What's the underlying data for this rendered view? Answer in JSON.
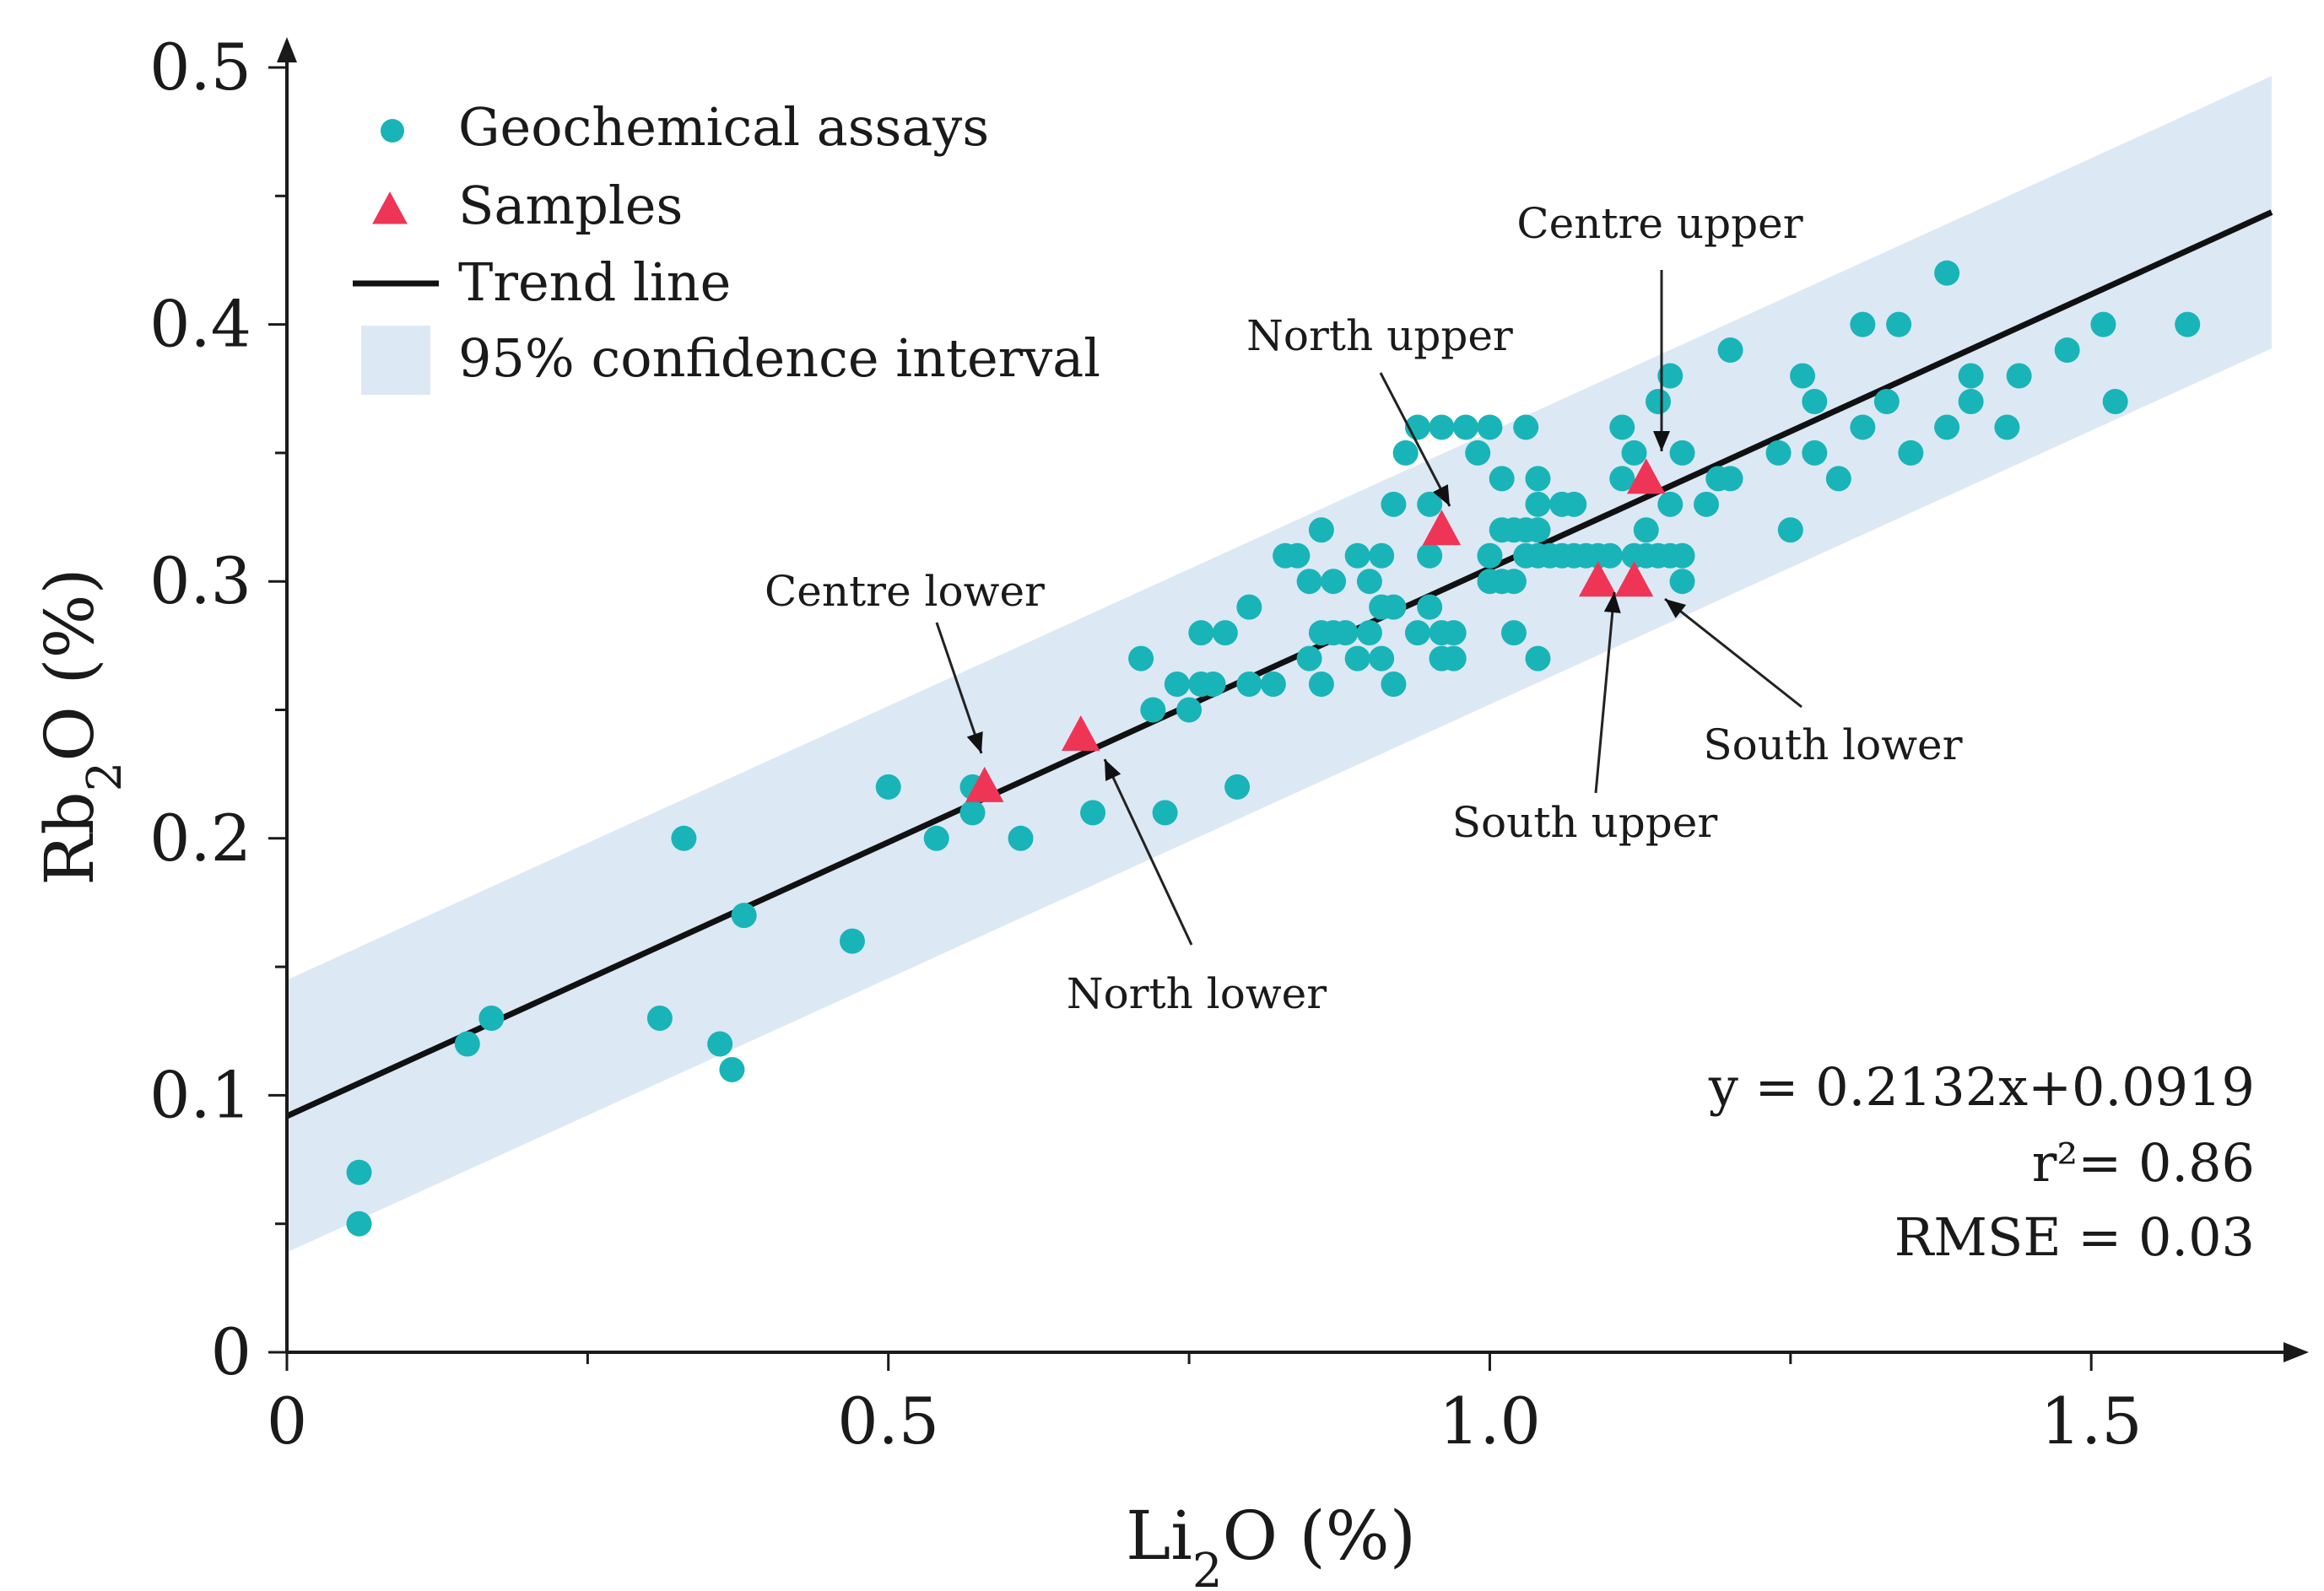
{
  "chart_data": {
    "type": "scatter",
    "title": "",
    "xlabel": {
      "base": "Li",
      "sub": "2",
      "rest": "O (%)"
    },
    "ylabel": {
      "base": "Rb",
      "sub": "2",
      "rest": "O (%)"
    },
    "xlim": [
      0,
      1.65
    ],
    "ylim": [
      0,
      0.5
    ],
    "x_ticks": [
      {
        "value": 0,
        "label": "0"
      },
      {
        "value": 0.5,
        "label": "0.5"
      },
      {
        "value": 1.0,
        "label": "1.0"
      },
      {
        "value": 1.5,
        "label": "1.5"
      }
    ],
    "y_ticks": [
      {
        "value": 0,
        "label": "0"
      },
      {
        "value": 0.1,
        "label": "0.1"
      },
      {
        "value": 0.2,
        "label": "0.2"
      },
      {
        "value": 0.3,
        "label": "0.3"
      },
      {
        "value": 0.4,
        "label": "0.4"
      },
      {
        "value": 0.5,
        "label": "0.5"
      }
    ],
    "colors": {
      "assay": "#19b4b8",
      "sample": "#ef3556",
      "trend": "#111111",
      "ci": "#dde8f5",
      "axis": "#1a1a1a"
    },
    "legend": {
      "position": "top-left",
      "items": [
        {
          "key": "assay",
          "label": "Geochemical assays"
        },
        {
          "key": "sample",
          "label": "Samples"
        },
        {
          "key": "trend",
          "label": "Trend line"
        },
        {
          "key": "ci",
          "label": "95% confidence interval"
        }
      ]
    },
    "trend": {
      "slope": 0.2132,
      "intercept": 0.0919,
      "x_range": [
        0,
        1.65
      ]
    },
    "confidence_band": {
      "half_width": 0.053
    },
    "stats": [
      "y = 0.2132x+0.0919",
      "r²= 0.86",
      "RMSE = 0.03"
    ],
    "series": [
      {
        "name": "Geochemical assays",
        "marker": "circle",
        "points": [
          [
            0.06,
            0.07
          ],
          [
            0.06,
            0.05
          ],
          [
            0.15,
            0.12
          ],
          [
            0.17,
            0.13
          ],
          [
            0.31,
            0.13
          ],
          [
            0.33,
            0.2
          ],
          [
            0.36,
            0.12
          ],
          [
            0.37,
            0.11
          ],
          [
            0.38,
            0.17
          ],
          [
            0.47,
            0.16
          ],
          [
            0.5,
            0.22
          ],
          [
            0.54,
            0.2
          ],
          [
            0.57,
            0.21
          ],
          [
            0.57,
            0.22
          ],
          [
            0.61,
            0.2
          ],
          [
            0.67,
            0.21
          ],
          [
            0.71,
            0.27
          ],
          [
            0.72,
            0.25
          ],
          [
            0.73,
            0.21
          ],
          [
            0.74,
            0.26
          ],
          [
            0.75,
            0.25
          ],
          [
            0.76,
            0.26
          ],
          [
            0.76,
            0.28
          ],
          [
            0.77,
            0.26
          ],
          [
            0.78,
            0.28
          ],
          [
            0.79,
            0.22
          ],
          [
            0.8,
            0.29
          ],
          [
            0.8,
            0.26
          ],
          [
            0.82,
            0.26
          ],
          [
            0.83,
            0.31
          ],
          [
            0.84,
            0.31
          ],
          [
            0.85,
            0.27
          ],
          [
            0.85,
            0.3
          ],
          [
            0.86,
            0.32
          ],
          [
            0.86,
            0.28
          ],
          [
            0.86,
            0.26
          ],
          [
            0.87,
            0.28
          ],
          [
            0.87,
            0.3
          ],
          [
            0.88,
            0.28
          ],
          [
            0.89,
            0.27
          ],
          [
            0.89,
            0.31
          ],
          [
            0.9,
            0.28
          ],
          [
            0.9,
            0.3
          ],
          [
            0.91,
            0.27
          ],
          [
            0.91,
            0.29
          ],
          [
            0.91,
            0.31
          ],
          [
            0.92,
            0.26
          ],
          [
            0.92,
            0.29
          ],
          [
            0.92,
            0.33
          ],
          [
            0.93,
            0.35
          ],
          [
            0.94,
            0.36
          ],
          [
            0.94,
            0.28
          ],
          [
            0.95,
            0.29
          ],
          [
            0.95,
            0.31
          ],
          [
            0.95,
            0.33
          ],
          [
            0.96,
            0.27
          ],
          [
            0.96,
            0.28
          ],
          [
            0.96,
            0.36
          ],
          [
            0.97,
            0.27
          ],
          [
            0.97,
            0.28
          ],
          [
            0.98,
            0.36
          ],
          [
            0.99,
            0.35
          ],
          [
            1.0,
            0.3
          ],
          [
            1.0,
            0.31
          ],
          [
            1.0,
            0.36
          ],
          [
            1.01,
            0.32
          ],
          [
            1.01,
            0.3
          ],
          [
            1.01,
            0.34
          ],
          [
            1.02,
            0.32
          ],
          [
            1.02,
            0.3
          ],
          [
            1.02,
            0.28
          ],
          [
            1.03,
            0.32
          ],
          [
            1.03,
            0.31
          ],
          [
            1.03,
            0.36
          ],
          [
            1.04,
            0.27
          ],
          [
            1.04,
            0.31
          ],
          [
            1.04,
            0.32
          ],
          [
            1.04,
            0.33
          ],
          [
            1.04,
            0.34
          ],
          [
            1.05,
            0.31
          ],
          [
            1.06,
            0.31
          ],
          [
            1.06,
            0.33
          ],
          [
            1.07,
            0.31
          ],
          [
            1.07,
            0.33
          ],
          [
            1.08,
            0.31
          ],
          [
            1.09,
            0.31
          ],
          [
            1.1,
            0.31
          ],
          [
            1.11,
            0.34
          ],
          [
            1.11,
            0.36
          ],
          [
            1.12,
            0.35
          ],
          [
            1.12,
            0.31
          ],
          [
            1.13,
            0.32
          ],
          [
            1.13,
            0.31
          ],
          [
            1.14,
            0.37
          ],
          [
            1.14,
            0.31
          ],
          [
            1.15,
            0.38
          ],
          [
            1.15,
            0.33
          ],
          [
            1.15,
            0.31
          ],
          [
            1.16,
            0.35
          ],
          [
            1.16,
            0.31
          ],
          [
            1.16,
            0.3
          ],
          [
            1.18,
            0.33
          ],
          [
            1.19,
            0.34
          ],
          [
            1.2,
            0.39
          ],
          [
            1.2,
            0.34
          ],
          [
            1.24,
            0.35
          ],
          [
            1.25,
            0.32
          ],
          [
            1.26,
            0.38
          ],
          [
            1.27,
            0.37
          ],
          [
            1.27,
            0.35
          ],
          [
            1.29,
            0.34
          ],
          [
            1.31,
            0.36
          ],
          [
            1.31,
            0.4
          ],
          [
            1.33,
            0.37
          ],
          [
            1.34,
            0.4
          ],
          [
            1.35,
            0.35
          ],
          [
            1.38,
            0.42
          ],
          [
            1.38,
            0.36
          ],
          [
            1.4,
            0.38
          ],
          [
            1.4,
            0.37
          ],
          [
            1.43,
            0.36
          ],
          [
            1.44,
            0.38
          ],
          [
            1.48,
            0.39
          ],
          [
            1.51,
            0.4
          ],
          [
            1.52,
            0.37
          ],
          [
            1.58,
            0.4
          ]
        ]
      },
      {
        "name": "Samples",
        "marker": "triangle",
        "points": [
          {
            "x": 0.58,
            "y": 0.22,
            "label": "Centre lower"
          },
          {
            "x": 0.66,
            "y": 0.24,
            "label": "North lower"
          },
          {
            "x": 0.96,
            "y": 0.32,
            "label": "North upper"
          },
          {
            "x": 1.09,
            "y": 0.3,
            "label": "South upper"
          },
          {
            "x": 1.12,
            "y": 0.3,
            "label": "South lower"
          },
          {
            "x": 1.13,
            "y": 0.34,
            "label": "Centre upper"
          }
        ]
      }
    ],
    "annotations": [
      {
        "text": "Centre lower",
        "target": "Centre lower"
      },
      {
        "text": "North lower",
        "target": "North lower"
      },
      {
        "text": "North upper",
        "target": "North upper"
      },
      {
        "text": "South upper",
        "target": "South upper"
      },
      {
        "text": "South lower",
        "target": "South lower"
      },
      {
        "text": "Centre upper",
        "target": "Centre upper"
      }
    ]
  }
}
